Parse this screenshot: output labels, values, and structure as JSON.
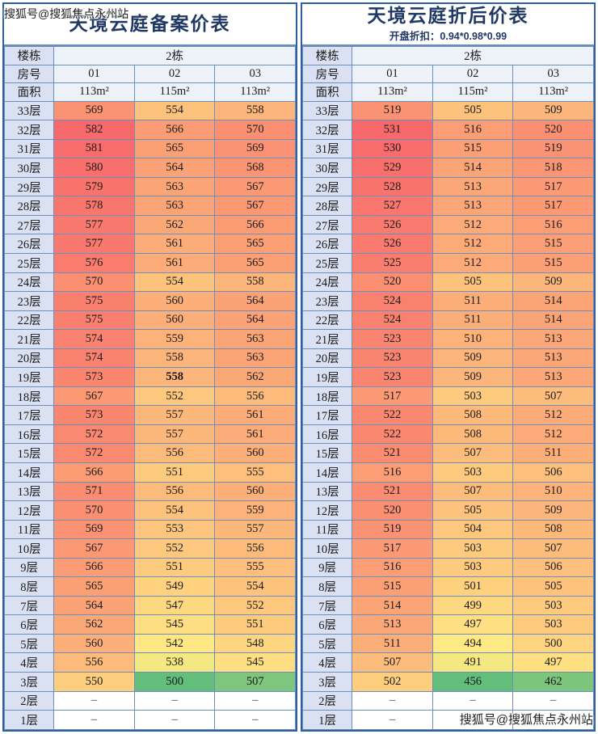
{
  "watermarks": {
    "top": "搜狐号@搜狐焦点永州站",
    "bottom": "搜狐号@搜狐焦点永州站"
  },
  "colors": {
    "heat_min": "#63BE7B",
    "heat_mid": "#FFEB84",
    "heat_max": "#F8696B",
    "grid_border": "#6C8EBF",
    "outer_border": "#2E5FA3",
    "header_fill": "#D9E1F2",
    "title_color": "#1F3864"
  },
  "empty_placeholder": "–",
  "tables": [
    {
      "title": "天境云庭备案价表",
      "subtitle": "",
      "header": {
        "building_label": "楼栋",
        "building_value": "2栋",
        "room_label": "房号",
        "room_numbers": [
          "01",
          "02",
          "03"
        ],
        "area_label": "面积",
        "areas": [
          "113m²",
          "115m²",
          "113m²"
        ]
      },
      "floors": [
        "33层",
        "32层",
        "31层",
        "30层",
        "29层",
        "28层",
        "27层",
        "26层",
        "25层",
        "24层",
        "23层",
        "22层",
        "21层",
        "20层",
        "19层",
        "18层",
        "17层",
        "16层",
        "15层",
        "14层",
        "13层",
        "12层",
        "11层",
        "10层",
        "9层",
        "8层",
        "7层",
        "6层",
        "5层",
        "4层",
        "3层",
        "2层",
        "1层"
      ],
      "prices": [
        [
          569,
          554,
          558
        ],
        [
          582,
          566,
          570
        ],
        [
          581,
          565,
          569
        ],
        [
          580,
          564,
          568
        ],
        [
          579,
          563,
          567
        ],
        [
          578,
          563,
          567
        ],
        [
          577,
          562,
          566
        ],
        [
          577,
          561,
          565
        ],
        [
          576,
          561,
          565
        ],
        [
          570,
          554,
          558
        ],
        [
          575,
          560,
          564
        ],
        [
          575,
          560,
          564
        ],
        [
          574,
          559,
          563
        ],
        [
          574,
          558,
          563
        ],
        [
          573,
          558,
          562
        ],
        [
          567,
          552,
          556
        ],
        [
          573,
          557,
          561
        ],
        [
          572,
          557,
          561
        ],
        [
          572,
          556,
          560
        ],
        [
          566,
          551,
          555
        ],
        [
          571,
          556,
          560
        ],
        [
          570,
          554,
          559
        ],
        [
          569,
          553,
          557
        ],
        [
          567,
          552,
          556
        ],
        [
          566,
          551,
          555
        ],
        [
          565,
          549,
          554
        ],
        [
          564,
          547,
          552
        ],
        [
          562,
          545,
          551
        ],
        [
          560,
          542,
          548
        ],
        [
          556,
          538,
          545
        ],
        [
          550,
          500,
          507
        ],
        [
          null,
          null,
          null
        ],
        [
          null,
          null,
          null
        ]
      ],
      "emphasis_cell": {
        "row": 14,
        "col": 1
      }
    },
    {
      "title": "天境云庭折后价表",
      "subtitle": "开盘折扣：0.94*0.98*0.99",
      "header": {
        "building_label": "楼栋",
        "building_value": "2栋",
        "room_label": "房号",
        "room_numbers": [
          "01",
          "02",
          "03"
        ],
        "area_label": "面积",
        "areas": [
          "113m²",
          "115m²",
          "113m²"
        ]
      },
      "floors": [
        "33层",
        "32层",
        "31层",
        "30层",
        "29层",
        "28层",
        "27层",
        "26层",
        "25层",
        "24层",
        "23层",
        "22层",
        "21层",
        "20层",
        "19层",
        "18层",
        "17层",
        "16层",
        "15层",
        "14层",
        "13层",
        "12层",
        "11层",
        "10层",
        "9层",
        "8层",
        "7层",
        "6层",
        "5层",
        "4层",
        "3层",
        "2层",
        "1层"
      ],
      "prices": [
        [
          519,
          505,
          509
        ],
        [
          531,
          516,
          520
        ],
        [
          530,
          515,
          519
        ],
        [
          529,
          514,
          518
        ],
        [
          528,
          513,
          517
        ],
        [
          527,
          513,
          517
        ],
        [
          526,
          512,
          516
        ],
        [
          526,
          512,
          515
        ],
        [
          525,
          512,
          515
        ],
        [
          520,
          505,
          509
        ],
        [
          524,
          511,
          514
        ],
        [
          524,
          511,
          514
        ],
        [
          523,
          510,
          513
        ],
        [
          523,
          509,
          513
        ],
        [
          523,
          509,
          513
        ],
        [
          517,
          503,
          507
        ],
        [
          522,
          508,
          512
        ],
        [
          522,
          508,
          512
        ],
        [
          521,
          507,
          511
        ],
        [
          516,
          503,
          506
        ],
        [
          521,
          507,
          510
        ],
        [
          520,
          505,
          509
        ],
        [
          519,
          504,
          508
        ],
        [
          517,
          503,
          507
        ],
        [
          516,
          503,
          506
        ],
        [
          515,
          501,
          505
        ],
        [
          514,
          499,
          503
        ],
        [
          513,
          497,
          503
        ],
        [
          511,
          494,
          500
        ],
        [
          507,
          491,
          497
        ],
        [
          502,
          456,
          462
        ],
        [
          null,
          null,
          null
        ],
        [
          null,
          null,
          null
        ]
      ]
    }
  ]
}
